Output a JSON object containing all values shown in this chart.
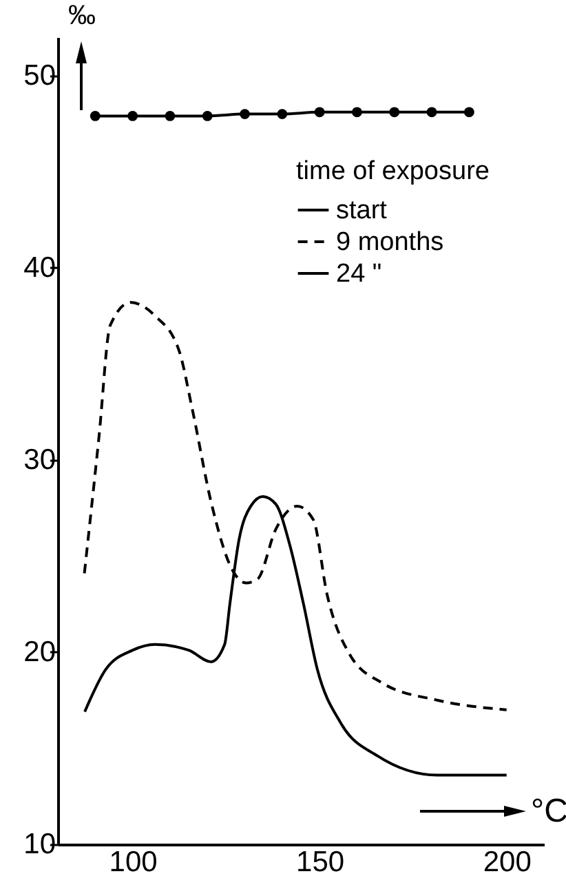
{
  "chart_data": {
    "type": "line",
    "xlabel": "°C",
    "ylabel": "‰",
    "legend_title": "time of exposure",
    "legend": "top right",
    "grid": false,
    "xlim": [
      80,
      210
    ],
    "xticks": [
      100,
      150,
      200
    ],
    "ylim": [
      10,
      52
    ],
    "yticks": [
      10,
      20,
      30,
      40,
      50
    ],
    "series": [
      {
        "name": "start",
        "color": "#000000",
        "marker": "circle",
        "line_style": "solid",
        "x": [
          90,
          100,
          110,
          120,
          130,
          140,
          150,
          160,
          170,
          180,
          190
        ],
        "values": [
          47.9,
          47.9,
          47.9,
          47.9,
          48,
          48,
          48.1,
          48.1,
          48.1,
          48.1,
          48.1
        ]
      },
      {
        "name": "9 months",
        "color": "#000000",
        "marker": "none",
        "line_style": "dashed",
        "x": [
          87.1,
          91,
          94,
          99.4,
          106,
          112.4,
          116,
          121,
          126.6,
          130.3,
          133.4,
          138.3,
          144,
          148.3,
          152,
          158,
          166.7,
          181.5,
          200
        ],
        "values": [
          24.1,
          31.2,
          37,
          38.2,
          37.5,
          35.7,
          32.6,
          27.8,
          24.3,
          23.6,
          23.8,
          26.4,
          27.6,
          26.9,
          23,
          19.9,
          18.4,
          17.5,
          17
        ]
      },
      {
        "name": "24    \"",
        "color": "#000000",
        "marker": "none",
        "line_style": "solid",
        "x": [
          87.2,
          92.8,
          100,
          106,
          115,
          121,
          124.6,
          126,
          128.5,
          131.6,
          134.8,
          138.3,
          142,
          145.7,
          149.4,
          155.7,
          165.5,
          181.5,
          200
        ],
        "values": [
          16.9,
          19.1,
          20.1,
          20.4,
          20.1,
          19.5,
          20.4,
          22.5,
          25.9,
          27.6,
          28.1,
          27.7,
          25.6,
          22.5,
          19.1,
          16.3,
          14.6,
          13.6,
          13.6
        ]
      }
    ]
  }
}
